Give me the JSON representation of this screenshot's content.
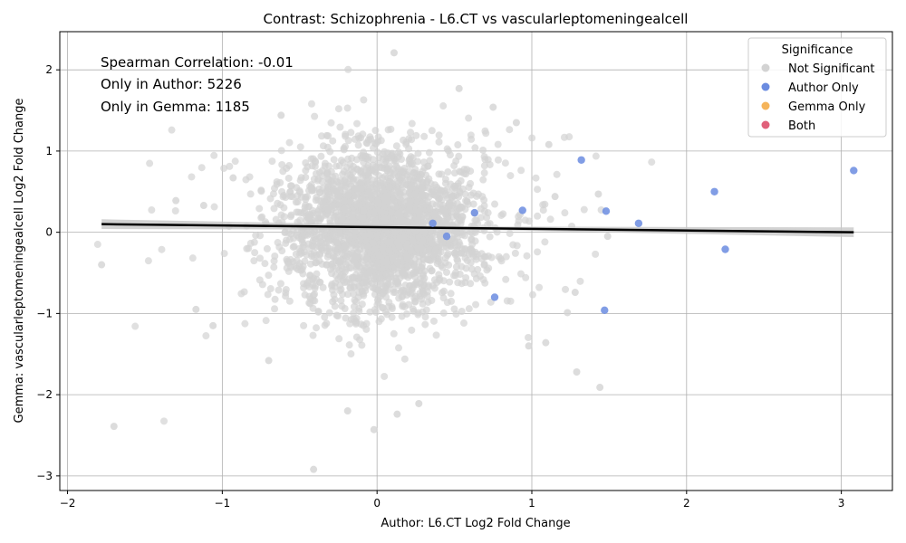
{
  "chart_data": {
    "type": "scatter",
    "title": "Contrast: Schizophrenia - L6.CT vs vascularleptomeningealcell",
    "xlabel": "Author: L6.CT Log2 Fold Change",
    "ylabel": "Gemma: vascularleptomeningealcell Log2 Fold Change",
    "xlim": [
      -2.05,
      3.33
    ],
    "ylim": [
      -3.18,
      2.47
    ],
    "xticks": [
      -2,
      -1,
      0,
      1,
      2,
      3
    ],
    "yticks": [
      -3,
      -2,
      -1,
      0,
      1,
      2
    ],
    "grid": true,
    "annotations": [
      "Spearman Correlation: -0.01",
      "Only in Author: 5226",
      "Only in Gemma: 1185"
    ],
    "legend": {
      "title": "Significance",
      "position": "top-right",
      "entries": [
        {
          "label": "Not Significant",
          "color": "#d3d3d3"
        },
        {
          "label": "Author Only",
          "color": "#6b8ce0"
        },
        {
          "label": "Gemma Only",
          "color": "#f5b45a"
        },
        {
          "label": "Both",
          "color": "#e0607a"
        }
      ]
    },
    "regression": {
      "x": [
        -1.78,
        3.08
      ],
      "y": [
        0.1,
        0.0
      ],
      "ci_half_width_ends": 0.06
    },
    "series": [
      {
        "name": "Author Only",
        "color": "#6b8ce0",
        "points": [
          [
            1.32,
            0.89
          ],
          [
            3.08,
            0.76
          ],
          [
            2.18,
            0.5
          ],
          [
            1.48,
            0.26
          ],
          [
            0.94,
            0.27
          ],
          [
            1.69,
            0.11
          ],
          [
            2.25,
            -0.21
          ],
          [
            0.76,
            -0.8
          ],
          [
            1.47,
            -0.96
          ],
          [
            0.63,
            0.24
          ],
          [
            0.36,
            0.11
          ],
          [
            0.45,
            -0.05
          ]
        ]
      },
      {
        "name": "Not Significant",
        "color": "#d3d3d3",
        "outliers": [
          [
            0.11,
            2.21
          ],
          [
            -1.78,
            -0.4
          ],
          [
            -1.7,
            -2.39
          ],
          [
            -0.41,
            -2.92
          ],
          [
            -0.02,
            -2.43
          ],
          [
            0.27,
            -2.11
          ],
          [
            -0.19,
            -2.2
          ],
          [
            0.13,
            -2.24
          ],
          [
            1.29,
            -1.72
          ],
          [
            1.44,
            -1.91
          ],
          [
            1.43,
            0.47
          ],
          [
            1.11,
            1.08
          ],
          [
            0.9,
            1.35
          ],
          [
            -0.62,
            1.44
          ],
          [
            0.53,
            1.77
          ],
          [
            0.75,
            1.54
          ],
          [
            -1.3,
            0.39
          ],
          [
            -1.12,
            0.33
          ],
          [
            -1.17,
            -0.95
          ],
          [
            -1.06,
            -1.15
          ],
          [
            -0.7,
            -1.58
          ],
          [
            1.28,
            -0.74
          ],
          [
            1.23,
            -0.99
          ],
          [
            1.09,
            -1.36
          ],
          [
            0.98,
            -1.4
          ],
          [
            1.49,
            -0.05
          ],
          [
            1.15,
            0.44
          ],
          [
            -0.93,
            0.67
          ]
        ],
        "cloud": {
          "n": 2600,
          "x_mean": 0.05,
          "x_sd": 0.32,
          "y_mean": 0.05,
          "y_sd": 0.48,
          "seed": 7
        }
      }
    ]
  }
}
